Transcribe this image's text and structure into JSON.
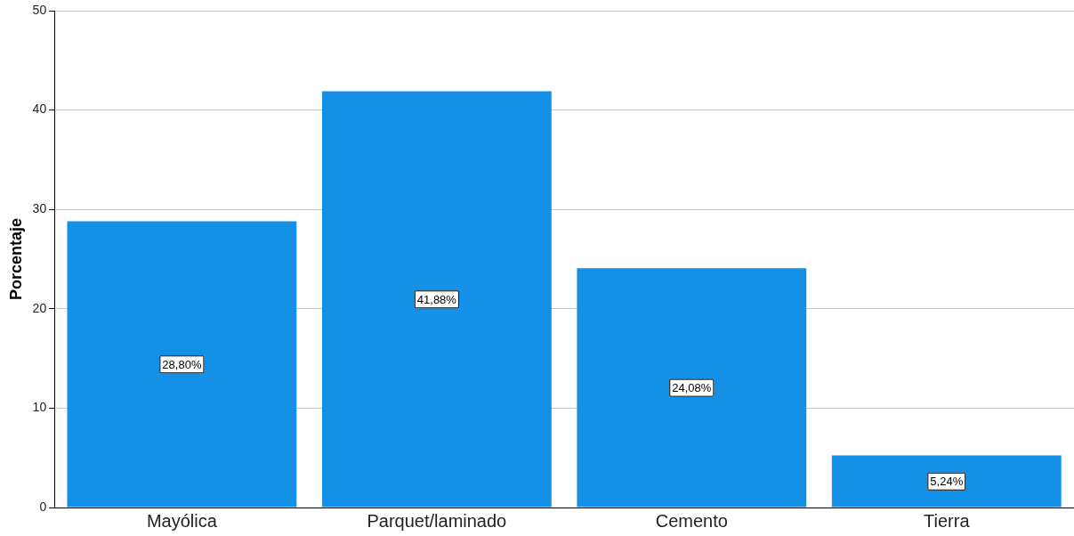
{
  "chart_data": {
    "type": "bar",
    "ylabel": "Porcentaje",
    "categories": [
      "Mayólica",
      "Parquet/laminado",
      "Cemento",
      "Tierra"
    ],
    "values": [
      28.8,
      41.88,
      24.08,
      5.24
    ],
    "value_labels": [
      "28,80%",
      "41,88%",
      "24,08%",
      "5,24%"
    ],
    "color": "#1490e6",
    "ylim": [
      0,
      50
    ],
    "yticks": [
      0,
      10,
      20,
      30,
      40,
      50
    ],
    "grid": "y",
    "legend": false
  }
}
